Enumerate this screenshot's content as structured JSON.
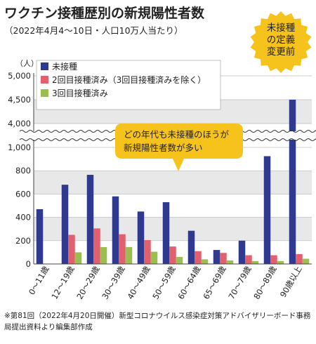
{
  "header": {
    "title": "ワクチン接種歴別の新規陽性者数",
    "subtitle": "（2022年4月4～10日・人口10万人当たり）"
  },
  "badge": {
    "lines": [
      "未接種",
      "の定義",
      "変更前"
    ],
    "color": "#f5c31c"
  },
  "callout": {
    "lines": [
      "どの年代も未接種のほうが",
      "新規陽性者数が多い"
    ],
    "color": "#f5c31c"
  },
  "footnote": "※第81回（2022年4月20日開催）新型コロナウイルス感染症対策アドバイザリーボード事務局提出資料より編集部作成",
  "chart_data": {
    "type": "bar",
    "ylabel": "（人）",
    "categories": [
      "0～11歳",
      "12～19歳",
      "20～29歳",
      "30～39歳",
      "40～49歳",
      "50～59歳",
      "60～64歳",
      "65～69歳",
      "70～79歳",
      "80～89歳",
      "90歳以上"
    ],
    "series": [
      {
        "name": "未接種",
        "color": "#2f3a8f",
        "values": [
          470,
          680,
          765,
          580,
          450,
          530,
          285,
          120,
          200,
          925,
          4500
        ]
      },
      {
        "name": "2回目接種済み（3回目接種済みを除く）",
        "color": "#e0606e",
        "values": [
          null,
          250,
          305,
          255,
          205,
          150,
          110,
          95,
          75,
          75,
          85
        ]
      },
      {
        "name": "3回目接種済み",
        "color": "#9bbf4f",
        "values": [
          null,
          100,
          145,
          145,
          105,
          60,
          40,
          30,
          25,
          25,
          45
        ]
      }
    ],
    "y_axis_break": {
      "from": 1000,
      "to": 4000
    },
    "yticks_lower": [
      0,
      200,
      400,
      600,
      800,
      1000
    ],
    "yticks_upper": [
      4000,
      4500,
      5000
    ],
    "ytick_labels_lower": [
      "0",
      "200",
      "400",
      "600",
      "800",
      "1,000"
    ],
    "ytick_labels_upper": [
      "4,000",
      "4,500",
      "5,000"
    ],
    "grid": "horizontal bands",
    "legend_position": "top-left"
  }
}
